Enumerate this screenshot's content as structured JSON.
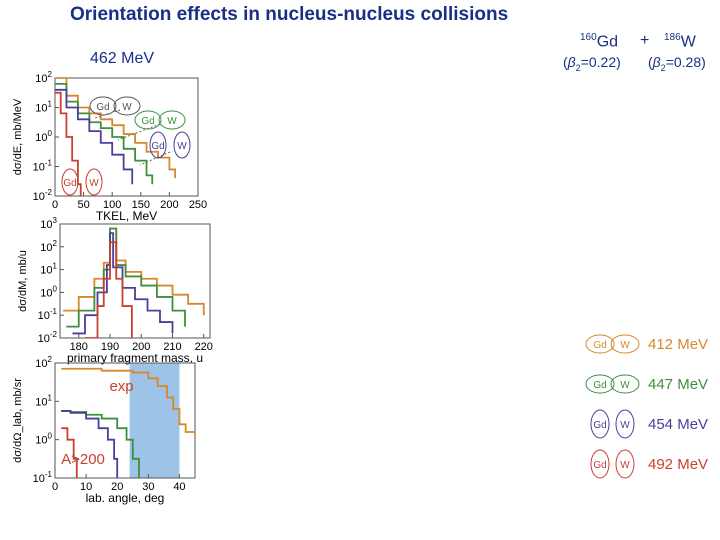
{
  "title": "Orientation effects in nucleus-nucleus collisions",
  "energy_label": "462 MeV",
  "reaction": {
    "gd_mass": "160",
    "gd": "Gd",
    "plus": "+",
    "w_mass": "186",
    "w": "W",
    "beta_gd_prefix": "(",
    "beta_symbol": "β",
    "beta_sub": "2",
    "beta_gd_value": "=0.22)",
    "beta_w_value": "=0.28)"
  },
  "legend": [
    {
      "label": "412 MeV",
      "color": "#d6882a",
      "gd": "Gd",
      "w": "W"
    },
    {
      "label": "447 MeV",
      "color": "#3f8f3f",
      "gd": "Gd",
      "w": "W"
    },
    {
      "label": "454 MeV",
      "color": "#4a3f9a",
      "gd": "Gd",
      "w": "W"
    },
    {
      "label": "492 MeV",
      "color": "#c84030",
      "gd": "Gd",
      "w": "W"
    }
  ],
  "chart_data": [
    {
      "type": "line",
      "ylabel": "dσ/dE, mb/MeV",
      "xlabel": "TKEL, MeV",
      "xlim": [
        0,
        250
      ],
      "ylim_log": [
        -2,
        2
      ],
      "x_ticks": [
        "0",
        "50",
        "100",
        "150",
        "200",
        "250"
      ],
      "y_ticks": [
        "10^2",
        "10^1",
        "10^0",
        "10^-1",
        "10^-2"
      ],
      "inset_labels": {
        "gd": "Gd",
        "w": "W"
      },
      "series": [
        {
          "color": "#d6882a",
          "x": [
            0,
            20,
            40,
            60,
            80,
            100,
            120,
            140,
            160,
            180,
            200,
            210
          ],
          "log_y": [
            2,
            1.4,
            1.0,
            0.8,
            0.6,
            0.4,
            0.1,
            -0.2,
            -0.5,
            -0.7,
            -1.1,
            -1.4
          ]
        },
        {
          "color": "#3f8f3f",
          "x": [
            0,
            20,
            40,
            60,
            80,
            100,
            120,
            140,
            160,
            170
          ],
          "log_y": [
            1.8,
            1.2,
            0.8,
            0.5,
            0.3,
            0.0,
            -0.4,
            -0.8,
            -1.3,
            -1.6
          ]
        },
        {
          "color": "#4a3f9a",
          "x": [
            0,
            20,
            40,
            60,
            80,
            100,
            120,
            135
          ],
          "log_y": [
            1.6,
            1.0,
            0.6,
            0.2,
            -0.2,
            -0.6,
            -1.1,
            -1.6
          ]
        },
        {
          "color": "#c84030",
          "x": [
            0,
            10,
            20,
            30,
            40,
            45
          ],
          "log_y": [
            1.5,
            0.8,
            0.0,
            -0.8,
            -1.6,
            -2
          ]
        }
      ]
    },
    {
      "type": "line",
      "ylabel": "dσ/dM, mb/u",
      "xlabel": "primary fragment mass, u",
      "xlim": [
        174,
        222
      ],
      "ylim_log": [
        -2,
        3
      ],
      "x_ticks": [
        "180",
        "190",
        "200",
        "210",
        "220"
      ],
      "y_ticks": [
        "10^3",
        "10^2",
        "10^1",
        "10^0",
        "10^-1",
        "10^-2"
      ],
      "series": [
        {
          "color": "#d6882a",
          "x": [
            175,
            180,
            185,
            188,
            190,
            192,
            195,
            200,
            205,
            210,
            215,
            220
          ],
          "log_y": [
            -0.8,
            -0.2,
            0.6,
            1.3,
            2.8,
            1.4,
            0.9,
            0.6,
            0.3,
            -0.1,
            -0.5,
            -1.0
          ]
        },
        {
          "color": "#3f8f3f",
          "x": [
            176,
            180,
            185,
            188,
            190,
            192,
            195,
            200,
            205,
            210,
            214
          ],
          "log_y": [
            -1.5,
            -0.8,
            0.2,
            1.0,
            2.8,
            1.2,
            0.7,
            0.3,
            -0.2,
            -0.8,
            -1.5
          ]
        },
        {
          "color": "#4a3f9a",
          "x": [
            178,
            182,
            186,
            189,
            190,
            191,
            194,
            198,
            202,
            206,
            210
          ],
          "log_y": [
            -1.8,
            -1.0,
            0.0,
            1.2,
            2.6,
            1.1,
            0.2,
            -0.3,
            -0.8,
            -1.3,
            -1.8
          ]
        },
        {
          "color": "#c84030",
          "x": [
            182,
            186,
            188,
            190,
            192,
            194,
            197
          ],
          "log_y": [
            -2,
            -0.6,
            0.6,
            2.2,
            0.6,
            -0.6,
            -2
          ]
        }
      ]
    },
    {
      "type": "line",
      "ylabel": "dσ/dΩ_lab, mb/sr",
      "xlabel": "lab. angle, deg",
      "xlim": [
        0,
        45
      ],
      "ylim_log": [
        -1,
        2
      ],
      "x_ticks": [
        "0",
        "10",
        "20",
        "30",
        "40"
      ],
      "y_ticks": [
        "10^2",
        "10^1",
        "10^0",
        "10^-1"
      ],
      "annotations": [
        "exp",
        "A>200"
      ],
      "exp_band_x": [
        24,
        40
      ],
      "series": [
        {
          "color": "#d6882a",
          "x": [
            2,
            5,
            10,
            15,
            20,
            25,
            30,
            33,
            36,
            38,
            40,
            42,
            45
          ],
          "log_y": [
            1.85,
            1.85,
            1.85,
            1.8,
            1.8,
            1.75,
            1.6,
            1.4,
            1.1,
            0.8,
            0.4,
            0.2,
            0.1
          ]
        },
        {
          "color": "#3f8f3f",
          "x": [
            2,
            5,
            10,
            15,
            20,
            23,
            25,
            27
          ],
          "log_y": [
            0.75,
            0.72,
            0.65,
            0.55,
            0.3,
            0.0,
            -0.5,
            -1
          ]
        },
        {
          "color": "#4a3f9a",
          "x": [
            2,
            5,
            10,
            14,
            17,
            19,
            20
          ],
          "log_y": [
            0.75,
            0.7,
            0.55,
            0.3,
            0.0,
            -0.5,
            -1
          ]
        },
        {
          "color": "#c84030",
          "x": [
            2,
            4,
            6,
            7
          ],
          "log_y": [
            0.3,
            0.0,
            -0.5,
            -1
          ]
        }
      ]
    }
  ]
}
